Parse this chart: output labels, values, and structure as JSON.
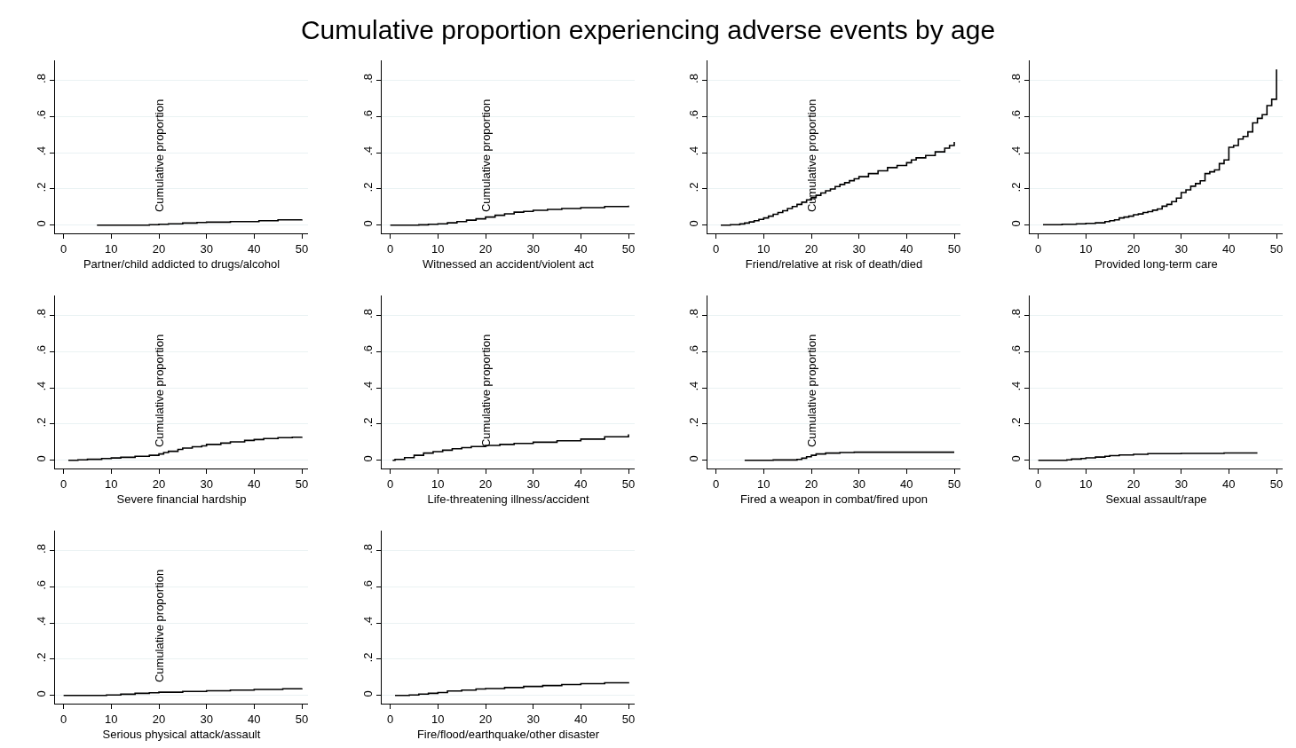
{
  "chart_data": [
    {
      "type": "step",
      "title": "Cumulative proportion experiencing adverse events by age",
      "xlabel": "Partner/child addicted to drugs/alcohol",
      "ylabel": "Cumulative proportion",
      "color": "#000000",
      "grid": "y",
      "xlim": [
        -1.8,
        51.3
      ],
      "ylim": [
        -0.045,
        0.91
      ],
      "xticks": [
        0,
        10,
        20,
        30,
        40,
        50
      ],
      "yticks": [
        0,
        {
          "value": 0.2,
          "label": ".2"
        },
        {
          "value": 0.4,
          "label": ".4"
        },
        {
          "value": 0.6,
          "label": ".6"
        },
        {
          "value": 0.8,
          "label": ".8"
        }
      ],
      "x": [
        7,
        18,
        20,
        22,
        25,
        28,
        30,
        35,
        41,
        45,
        50
      ],
      "values": [
        0,
        0.003,
        0.005,
        0.008,
        0.012,
        0.015,
        0.017,
        0.02,
        0.025,
        0.03,
        0.032
      ]
    },
    {
      "type": "step",
      "xlabel": "Witnessed an accident/violent act",
      "ylabel": "Cumulative proportion",
      "color": "#000000",
      "grid": "y",
      "xlim": [
        -1.8,
        51.3
      ],
      "ylim": [
        -0.045,
        0.91
      ],
      "xticks": [
        0,
        10,
        20,
        30,
        40,
        50
      ],
      "yticks": [
        0,
        {
          "value": 0.2,
          "label": ".2"
        },
        {
          "value": 0.4,
          "label": ".4"
        },
        {
          "value": 0.6,
          "label": ".6"
        },
        {
          "value": 0.8,
          "label": ".8"
        }
      ],
      "x": [
        0,
        6,
        8,
        10,
        12,
        14,
        16,
        18,
        20,
        22,
        24,
        26,
        28,
        30,
        33,
        36,
        40,
        45,
        50
      ],
      "values": [
        0,
        0.002,
        0.005,
        0.008,
        0.013,
        0.02,
        0.028,
        0.035,
        0.045,
        0.055,
        0.063,
        0.072,
        0.076,
        0.082,
        0.087,
        0.092,
        0.097,
        0.103,
        0.108
      ]
    },
    {
      "type": "step",
      "xlabel": "Friend/relative at risk of death/died",
      "ylabel": "Cumulative proportion",
      "color": "#000000",
      "grid": "y",
      "xlim": [
        -1.8,
        51.3
      ],
      "ylim": [
        -0.045,
        0.91
      ],
      "xticks": [
        0,
        10,
        20,
        30,
        40,
        50
      ],
      "yticks": [
        0,
        {
          "value": 0.2,
          "label": ".2"
        },
        {
          "value": 0.4,
          "label": ".4"
        },
        {
          "value": 0.6,
          "label": ".6"
        },
        {
          "value": 0.8,
          "label": ".8"
        }
      ],
      "x": [
        1,
        3,
        5,
        6,
        7,
        8,
        9,
        10,
        11,
        12,
        13,
        14,
        15,
        16,
        17,
        18,
        19,
        20,
        21,
        22,
        23,
        24,
        25,
        26,
        27,
        28,
        29,
        30,
        32,
        34,
        36,
        38,
        40,
        41,
        42,
        44,
        46,
        48,
        49,
        50
      ],
      "values": [
        0,
        0.003,
        0.007,
        0.012,
        0.018,
        0.025,
        0.032,
        0.04,
        0.05,
        0.06,
        0.07,
        0.08,
        0.092,
        0.103,
        0.115,
        0.127,
        0.14,
        0.152,
        0.165,
        0.178,
        0.19,
        0.2,
        0.213,
        0.225,
        0.235,
        0.246,
        0.256,
        0.268,
        0.285,
        0.3,
        0.318,
        0.33,
        0.345,
        0.36,
        0.372,
        0.385,
        0.405,
        0.425,
        0.44,
        0.46
      ]
    },
    {
      "type": "step",
      "xlabel": "Provided long-term care",
      "color": "#000000",
      "grid": "y",
      "xlim": [
        -1.8,
        51.3
      ],
      "ylim": [
        -0.045,
        0.91
      ],
      "xticks": [
        0,
        10,
        20,
        30,
        40,
        50
      ],
      "yticks": [
        0,
        {
          "value": 0.2,
          "label": ".2"
        },
        {
          "value": 0.4,
          "label": ".4"
        },
        {
          "value": 0.6,
          "label": ".6"
        },
        {
          "value": 0.8,
          "label": ".8"
        }
      ],
      "x": [
        1,
        5,
        8,
        10,
        12,
        14,
        15,
        16,
        17,
        18,
        19,
        20,
        21,
        22,
        23,
        24,
        25,
        26,
        27,
        28,
        29,
        30,
        31,
        32,
        33,
        34,
        35,
        36,
        37,
        38,
        39,
        40,
        41,
        42,
        43,
        44,
        45,
        46,
        47,
        48,
        49,
        50
      ],
      "values": [
        0.003,
        0.005,
        0.008,
        0.01,
        0.013,
        0.02,
        0.025,
        0.03,
        0.04,
        0.045,
        0.05,
        0.058,
        0.062,
        0.07,
        0.075,
        0.083,
        0.09,
        0.105,
        0.115,
        0.13,
        0.15,
        0.18,
        0.195,
        0.215,
        0.23,
        0.245,
        0.285,
        0.295,
        0.305,
        0.34,
        0.36,
        0.43,
        0.44,
        0.475,
        0.49,
        0.515,
        0.565,
        0.59,
        0.61,
        0.66,
        0.695,
        0.86
      ]
    },
    {
      "type": "step",
      "xlabel": "Severe financial hardship",
      "ylabel": "Cumulative proportion",
      "color": "#000000",
      "grid": "y",
      "xlim": [
        -1.8,
        51.3
      ],
      "ylim": [
        -0.045,
        0.91
      ],
      "xticks": [
        0,
        10,
        20,
        30,
        40,
        50
      ],
      "yticks": [
        0,
        {
          "value": 0.2,
          "label": ".2"
        },
        {
          "value": 0.4,
          "label": ".4"
        },
        {
          "value": 0.6,
          "label": ".6"
        },
        {
          "value": 0.8,
          "label": ".8"
        }
      ],
      "x": [
        1,
        3,
        5,
        8,
        10,
        12,
        15,
        18,
        20,
        21,
        22,
        24,
        25,
        27,
        29,
        30,
        33,
        35,
        38,
        40,
        42,
        45,
        48,
        50
      ],
      "values": [
        0,
        0.003,
        0.006,
        0.01,
        0.013,
        0.017,
        0.022,
        0.028,
        0.035,
        0.043,
        0.05,
        0.06,
        0.068,
        0.075,
        0.08,
        0.088,
        0.095,
        0.102,
        0.11,
        0.115,
        0.12,
        0.125,
        0.128,
        0.13
      ]
    },
    {
      "type": "step",
      "xlabel": "Life-threatening illness/accident",
      "ylabel": "Cumulative proportion",
      "color": "#000000",
      "grid": "y",
      "xlim": [
        -1.8,
        51.3
      ],
      "ylim": [
        -0.045,
        0.91
      ],
      "xticks": [
        0,
        10,
        20,
        30,
        40,
        50
      ],
      "yticks": [
        0,
        {
          "value": 0.2,
          "label": ".2"
        },
        {
          "value": 0.4,
          "label": ".4"
        },
        {
          "value": 0.6,
          "label": ".6"
        },
        {
          "value": 0.8,
          "label": ".8"
        }
      ],
      "x": [
        0.5,
        1,
        3,
        5,
        7,
        9,
        11,
        13,
        15,
        17,
        20,
        23,
        26,
        30,
        35,
        40,
        45,
        50
      ],
      "values": [
        0,
        0.005,
        0.015,
        0.028,
        0.04,
        0.048,
        0.056,
        0.064,
        0.07,
        0.076,
        0.082,
        0.088,
        0.093,
        0.1,
        0.108,
        0.117,
        0.13,
        0.143
      ]
    },
    {
      "type": "step",
      "xlabel": "Fired a weapon in combat/fired upon",
      "ylabel": "Cumulative proportion",
      "color": "#000000",
      "grid": "y",
      "xlim": [
        -1.8,
        51.3
      ],
      "ylim": [
        -0.045,
        0.91
      ],
      "xticks": [
        0,
        10,
        20,
        30,
        40,
        50
      ],
      "yticks": [
        0,
        {
          "value": 0.2,
          "label": ".2"
        },
        {
          "value": 0.4,
          "label": ".4"
        },
        {
          "value": 0.6,
          "label": ".6"
        },
        {
          "value": 0.8,
          "label": ".8"
        }
      ],
      "x": [
        6,
        12,
        17,
        18,
        19,
        20,
        21,
        23,
        26,
        29,
        50
      ],
      "values": [
        0,
        0.002,
        0.005,
        0.012,
        0.02,
        0.028,
        0.035,
        0.04,
        0.043,
        0.045,
        0.045
      ]
    },
    {
      "type": "step",
      "xlabel": "Sexual assault/rape",
      "color": "#000000",
      "grid": "y",
      "xlim": [
        -1.8,
        51.3
      ],
      "ylim": [
        -0.045,
        0.91
      ],
      "xticks": [
        0,
        10,
        20,
        30,
        40,
        50
      ],
      "yticks": [
        0,
        {
          "value": 0.2,
          "label": ".2"
        },
        {
          "value": 0.4,
          "label": ".4"
        },
        {
          "value": 0.6,
          "label": ".6"
        },
        {
          "value": 0.8,
          "label": ".8"
        }
      ],
      "x": [
        0,
        6,
        7,
        9,
        10,
        12,
        14,
        15,
        17,
        20,
        23,
        30,
        39,
        46
      ],
      "values": [
        0,
        0.003,
        0.007,
        0.01,
        0.014,
        0.018,
        0.022,
        0.026,
        0.03,
        0.033,
        0.037,
        0.038,
        0.041,
        0.041
      ]
    },
    {
      "type": "step",
      "xlabel": "Serious physical attack/assault",
      "ylabel": "Cumulative proportion",
      "color": "#000000",
      "grid": "y",
      "xlim": [
        -1.8,
        51.3
      ],
      "ylim": [
        -0.045,
        0.91
      ],
      "xticks": [
        0,
        10,
        20,
        30,
        40,
        50
      ],
      "yticks": [
        0,
        {
          "value": 0.2,
          "label": ".2"
        },
        {
          "value": 0.4,
          "label": ".4"
        },
        {
          "value": 0.6,
          "label": ".6"
        },
        {
          "value": 0.8,
          "label": ".8"
        }
      ],
      "x": [
        0,
        9,
        12,
        15,
        18,
        20,
        25,
        30,
        35,
        40,
        46,
        50
      ],
      "values": [
        0,
        0.003,
        0.007,
        0.012,
        0.015,
        0.018,
        0.022,
        0.026,
        0.03,
        0.033,
        0.037,
        0.04
      ]
    },
    {
      "type": "step",
      "xlabel": "Fire/flood/earthquake/other disaster",
      "color": "#000000",
      "grid": "y",
      "xlim": [
        -1.8,
        51.3
      ],
      "ylim": [
        -0.045,
        0.91
      ],
      "xticks": [
        0,
        10,
        20,
        30,
        40,
        50
      ],
      "yticks": [
        0,
        {
          "value": 0.2,
          "label": ".2"
        },
        {
          "value": 0.4,
          "label": ".4"
        },
        {
          "value": 0.6,
          "label": ".6"
        },
        {
          "value": 0.8,
          "label": ".8"
        }
      ],
      "x": [
        1,
        4,
        6,
        8,
        10,
        12,
        15,
        18,
        20,
        24,
        28,
        32,
        36,
        40,
        45,
        50
      ],
      "values": [
        0,
        0.003,
        0.008,
        0.012,
        0.016,
        0.025,
        0.03,
        0.036,
        0.038,
        0.044,
        0.05,
        0.055,
        0.06,
        0.065,
        0.07,
        0.074
      ]
    }
  ]
}
